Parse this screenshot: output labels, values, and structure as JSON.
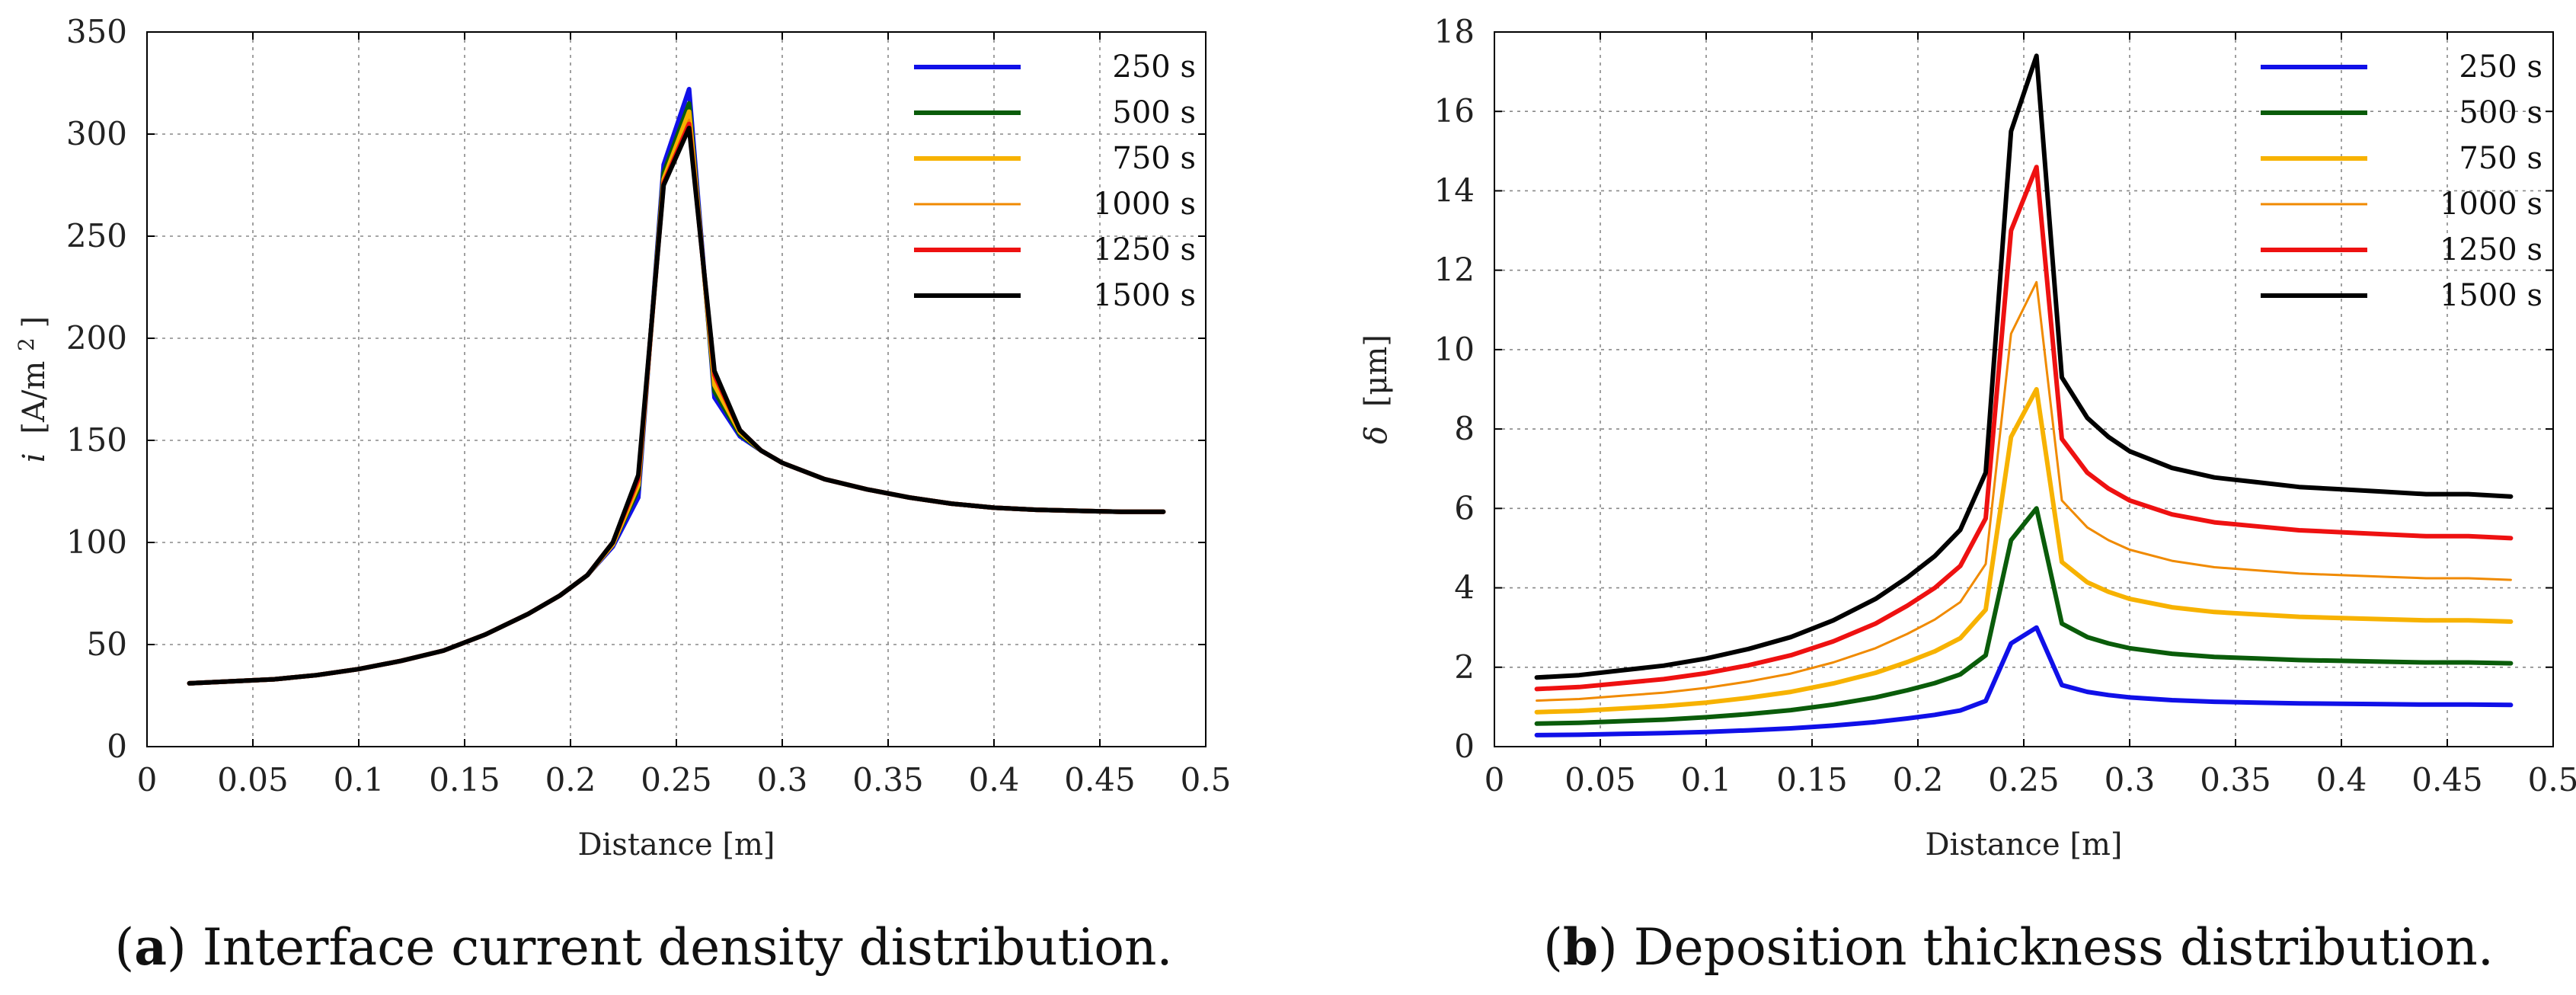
{
  "chart_data": [
    {
      "type": "line",
      "panel": "a",
      "caption_label": "a",
      "caption_text": "Interface current density distribution.",
      "xlabel": "Distance [m]",
      "ylabel_var": "i",
      "ylabel_unit": "[A/m",
      "ylabel_sup": "2",
      "ylabel_close": "]",
      "xlim": [
        0,
        0.5
      ],
      "ylim": [
        0,
        350
      ],
      "xticks": [
        "0",
        "0.05",
        "0.1",
        "0.15",
        "0.2",
        "0.25",
        "0.3",
        "0.35",
        "0.4",
        "0.45",
        "0.5"
      ],
      "yticks": [
        "0",
        "50",
        "100",
        "150",
        "200",
        "250",
        "300",
        "350"
      ],
      "x": [
        0.02,
        0.04,
        0.06,
        0.08,
        0.1,
        0.12,
        0.14,
        0.16,
        0.18,
        0.195,
        0.208,
        0.22,
        0.232,
        0.244,
        0.256,
        0.268,
        0.28,
        0.29,
        0.3,
        0.32,
        0.34,
        0.36,
        0.38,
        0.4,
        0.42,
        0.44,
        0.46,
        0.48
      ],
      "series": [
        {
          "name": "250 s",
          "color": "#1010e8",
          "width": 6,
          "values": [
            31,
            32,
            33,
            35,
            38,
            42,
            47,
            55,
            65,
            74,
            84,
            98,
            122,
            285,
            322,
            171,
            152,
            145,
            139,
            131,
            126,
            122,
            119,
            117,
            116,
            115.5,
            115,
            115
          ]
        },
        {
          "name": "500 s",
          "color": "#0a5c0a",
          "width": 6,
          "values": [
            31,
            32,
            33,
            35,
            38,
            42,
            47,
            55,
            65,
            74,
            84,
            99,
            126,
            281,
            315,
            174,
            153,
            145,
            139,
            131,
            126,
            122,
            119,
            117,
            116,
            115.5,
            115,
            115
          ]
        },
        {
          "name": "750 s",
          "color": "#f7b200",
          "width": 6,
          "values": [
            31,
            32,
            33,
            35,
            38,
            42,
            47,
            55,
            65,
            74,
            84,
            99,
            128,
            278,
            311,
            177,
            154,
            145,
            139,
            131,
            126,
            122,
            119,
            117,
            116,
            115.5,
            115,
            115
          ]
        },
        {
          "name": "1000 s",
          "color": "#f08a00",
          "width": 3,
          "values": [
            31,
            32,
            33,
            35,
            38,
            42,
            47,
            55,
            65,
            74,
            84,
            100,
            130,
            277,
            307,
            180,
            154,
            145,
            139,
            131,
            126,
            122,
            119,
            117,
            116,
            115.5,
            115,
            115
          ]
        },
        {
          "name": "1250 s",
          "color": "#ee1111",
          "width": 6,
          "values": [
            31,
            32,
            33,
            35,
            38,
            42,
            47,
            55,
            65,
            74,
            84,
            100,
            131,
            276,
            305,
            182,
            155,
            145,
            139,
            131,
            126,
            122,
            119,
            117,
            116,
            115.5,
            115,
            115
          ]
        },
        {
          "name": "1500 s",
          "color": "#000000",
          "width": 6,
          "values": [
            31,
            32,
            33,
            35,
            38,
            42,
            47,
            55,
            65,
            74,
            84,
            100,
            133,
            275,
            303,
            184,
            155,
            145,
            139,
            131,
            126,
            122,
            119,
            117,
            116,
            115.5,
            115,
            115
          ]
        }
      ]
    },
    {
      "type": "line",
      "panel": "b",
      "caption_label": "b",
      "caption_text": "Deposition thickness distribution.",
      "xlabel": "Distance [m]",
      "ylabel_var": "δ",
      "ylabel_unit": "[μm]",
      "ylabel_sup": "",
      "ylabel_close": "",
      "xlim": [
        0,
        0.5
      ],
      "ylim": [
        0,
        18
      ],
      "xticks": [
        "0",
        "0.05",
        "0.1",
        "0.15",
        "0.2",
        "0.25",
        "0.3",
        "0.35",
        "0.4",
        "0.45",
        "0.5"
      ],
      "yticks": [
        "0",
        "2",
        "4",
        "6",
        "8",
        "10",
        "12",
        "14",
        "16",
        "18"
      ],
      "x": [
        0.02,
        0.04,
        0.06,
        0.08,
        0.1,
        0.12,
        0.14,
        0.16,
        0.18,
        0.195,
        0.208,
        0.22,
        0.232,
        0.244,
        0.256,
        0.268,
        0.28,
        0.29,
        0.3,
        0.32,
        0.34,
        0.36,
        0.38,
        0.4,
        0.42,
        0.44,
        0.46,
        0.48
      ],
      "series": [
        {
          "name": "250 s",
          "color": "#1010e8",
          "width": 6,
          "values": [
            0.29,
            0.3,
            0.32,
            0.34,
            0.37,
            0.41,
            0.46,
            0.53,
            0.62,
            0.71,
            0.8,
            0.91,
            1.15,
            2.6,
            3.0,
            1.55,
            1.38,
            1.3,
            1.24,
            1.17,
            1.13,
            1.11,
            1.09,
            1.08,
            1.07,
            1.06,
            1.06,
            1.05
          ]
        },
        {
          "name": "500 s",
          "color": "#0a5c0a",
          "width": 6,
          "values": [
            0.58,
            0.6,
            0.64,
            0.68,
            0.74,
            0.82,
            0.92,
            1.06,
            1.24,
            1.42,
            1.6,
            1.82,
            2.3,
            5.2,
            6.0,
            3.1,
            2.76,
            2.6,
            2.48,
            2.34,
            2.26,
            2.22,
            2.18,
            2.16,
            2.14,
            2.12,
            2.12,
            2.1
          ]
        },
        {
          "name": "750 s",
          "color": "#f7b200",
          "width": 6,
          "values": [
            0.87,
            0.9,
            0.96,
            1.02,
            1.11,
            1.23,
            1.38,
            1.59,
            1.86,
            2.13,
            2.4,
            2.73,
            3.45,
            7.8,
            9.0,
            4.65,
            4.14,
            3.9,
            3.72,
            3.51,
            3.39,
            3.33,
            3.27,
            3.24,
            3.21,
            3.18,
            3.18,
            3.15
          ]
        },
        {
          "name": "1000 s",
          "color": "#f08a00",
          "width": 3,
          "values": [
            1.16,
            1.2,
            1.28,
            1.36,
            1.48,
            1.64,
            1.84,
            2.12,
            2.48,
            2.84,
            3.2,
            3.64,
            4.6,
            10.4,
            11.7,
            6.2,
            5.52,
            5.2,
            4.96,
            4.68,
            4.52,
            4.44,
            4.36,
            4.32,
            4.28,
            4.24,
            4.24,
            4.2
          ]
        },
        {
          "name": "1250 s",
          "color": "#ee1111",
          "width": 6,
          "values": [
            1.45,
            1.5,
            1.6,
            1.7,
            1.85,
            2.05,
            2.3,
            2.65,
            3.1,
            3.55,
            4.0,
            4.55,
            5.75,
            13.0,
            14.6,
            7.75,
            6.9,
            6.5,
            6.2,
            5.85,
            5.65,
            5.55,
            5.45,
            5.4,
            5.35,
            5.3,
            5.3,
            5.25
          ]
        },
        {
          "name": "1500 s",
          "color": "#000000",
          "width": 6,
          "values": [
            1.74,
            1.8,
            1.92,
            2.04,
            2.22,
            2.46,
            2.76,
            3.18,
            3.72,
            4.26,
            4.8,
            5.46,
            6.9,
            15.5,
            17.4,
            9.3,
            8.28,
            7.8,
            7.44,
            7.02,
            6.78,
            6.66,
            6.54,
            6.48,
            6.42,
            6.36,
            6.36,
            6.3
          ]
        }
      ]
    }
  ]
}
